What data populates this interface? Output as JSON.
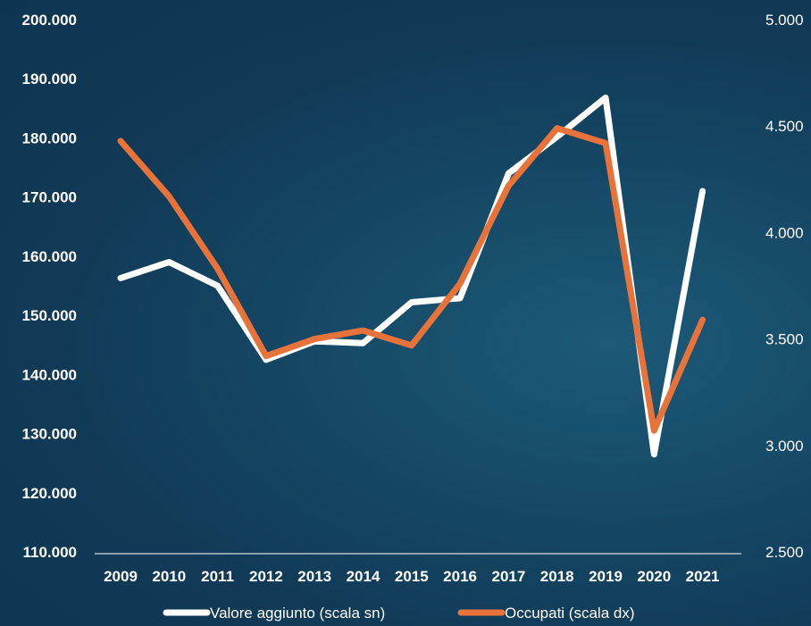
{
  "chart_data": {
    "type": "line",
    "categories": [
      "2009",
      "2010",
      "2011",
      "2012",
      "2013",
      "2014",
      "2015",
      "2016",
      "2017",
      "2018",
      "2019",
      "2020",
      "2021"
    ],
    "series": [
      {
        "name": "Valore aggiunto (scala sn)",
        "axis": "left",
        "color": "#ffffff",
        "values": [
          156300,
          159000,
          155000,
          142500,
          145600,
          145300,
          152200,
          152900,
          174000,
          180200,
          186800,
          126500,
          171000
        ]
      },
      {
        "name": "Occupati (scala dx)",
        "axis": "right",
        "color": "#e8733a",
        "values": [
          4430,
          4170,
          3830,
          3420,
          3500,
          3540,
          3470,
          3760,
          4220,
          4490,
          4420,
          3070,
          3590
        ]
      }
    ],
    "y_left": {
      "ylim": [
        110000,
        200000
      ],
      "ticks": [
        "110.000",
        "120.000",
        "130.000",
        "140.000",
        "150.000",
        "160.000",
        "170.000",
        "180.000",
        "190.000",
        "200.000"
      ]
    },
    "y_right": {
      "ylim": [
        2500,
        5000
      ],
      "ticks": [
        "2.500",
        "3.000",
        "3.500",
        "4.000",
        "4.500",
        "5.000"
      ]
    },
    "legend_position": "bottom-center",
    "grid": false
  }
}
